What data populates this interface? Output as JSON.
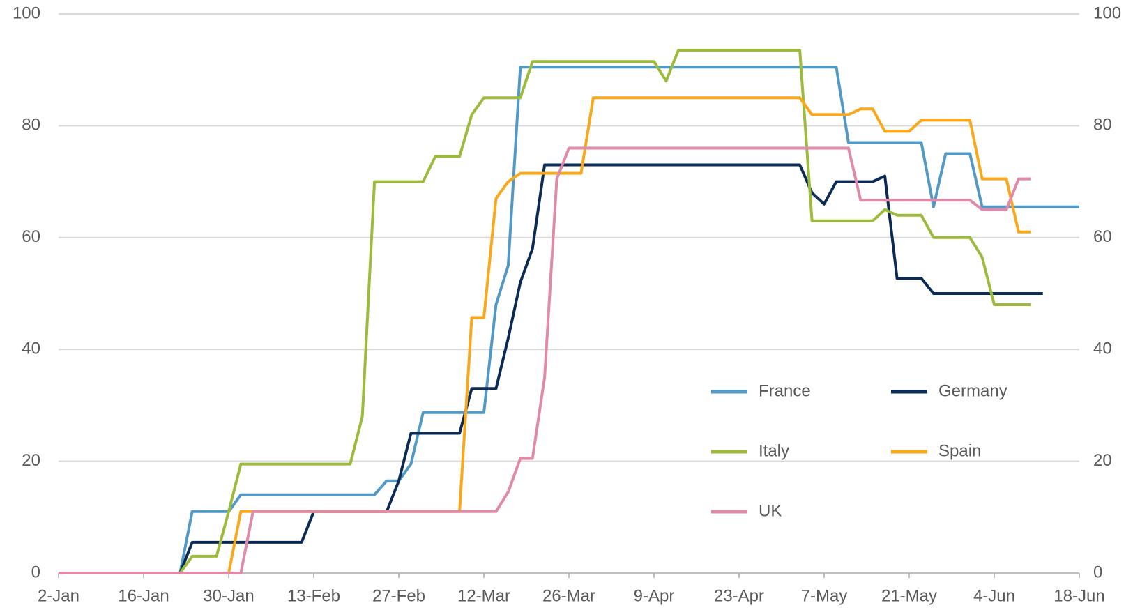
{
  "chart_data": {
    "type": "line",
    "categories": [
      "2-Jan",
      null,
      null,
      null,
      null,
      null,
      null,
      "16-Jan",
      null,
      null,
      null,
      null,
      null,
      null,
      "30-Jan",
      null,
      null,
      null,
      null,
      null,
      null,
      "13-Feb",
      null,
      null,
      null,
      null,
      null,
      null,
      "27-Feb",
      null,
      null,
      null,
      null,
      null,
      null,
      "12-Mar",
      null,
      null,
      null,
      null,
      null,
      null,
      "26-Mar",
      null,
      null,
      null,
      null,
      null,
      null,
      "9-Apr",
      null,
      null,
      null,
      null,
      null,
      null,
      "23-Apr",
      null,
      null,
      null,
      null,
      null,
      null,
      "7-May",
      null,
      null,
      null,
      null,
      null,
      null,
      "21-May",
      null,
      null,
      null,
      null,
      null,
      null,
      "4-Jun",
      null,
      null,
      null,
      null,
      null,
      null,
      "18-Jun"
    ],
    "series": [
      {
        "name": "France",
        "color": "#5299c6",
        "values": [
          0,
          0,
          0,
          0,
          0,
          0,
          0,
          0,
          0,
          0,
          0,
          11,
          11,
          11,
          11,
          14,
          14,
          14,
          14,
          14,
          14,
          14,
          14,
          14,
          14,
          14,
          14,
          16.5,
          16.5,
          19.5,
          28.7,
          28.7,
          28.7,
          28.7,
          28.7,
          28.7,
          48,
          55,
          90.5,
          90.5,
          90.5,
          90.5,
          90.5,
          90.5,
          90.5,
          90.5,
          90.5,
          90.5,
          90.5,
          90.5,
          90.5,
          90.5,
          90.5,
          90.5,
          90.5,
          90.5,
          90.5,
          90.5,
          90.5,
          90.5,
          90.5,
          90.5,
          90.5,
          90.5,
          90.5,
          77,
          77,
          77,
          77,
          77,
          77,
          77,
          65.5,
          75,
          75,
          75,
          65.5,
          65.5,
          65.5,
          65.5,
          65.5,
          65.5,
          65.5,
          65.5,
          65.5
        ]
      },
      {
        "name": "Germany",
        "color": "#0b2b55",
        "values": [
          0,
          0,
          0,
          0,
          0,
          0,
          0,
          0,
          0,
          0,
          0,
          5.5,
          5.5,
          5.5,
          5.5,
          5.5,
          5.5,
          5.5,
          5.5,
          5.5,
          5.5,
          11,
          11,
          11,
          11,
          11,
          11,
          11,
          16.5,
          25,
          25,
          25,
          25,
          25,
          33,
          33,
          33,
          42,
          52,
          58,
          73,
          73,
          73,
          73,
          73,
          73,
          73,
          73,
          73,
          73,
          73,
          73,
          73,
          73,
          73,
          73,
          73,
          73,
          73,
          73,
          73,
          73,
          68,
          66,
          70,
          70,
          70,
          70,
          71,
          52.7,
          52.7,
          52.7,
          50,
          50,
          50,
          50,
          50,
          50,
          50,
          50,
          50,
          50,
          null,
          null,
          null
        ]
      },
      {
        "name": "Italy",
        "color": "#9cbb3c",
        "values": [
          0,
          0,
          0,
          0,
          0,
          0,
          0,
          0,
          0,
          0,
          0,
          3,
          3,
          3,
          11,
          19.5,
          19.5,
          19.5,
          19.5,
          19.5,
          19.5,
          19.5,
          19.5,
          19.5,
          19.5,
          28,
          70,
          70,
          70,
          70,
          70,
          74.5,
          74.5,
          74.5,
          82,
          85,
          85,
          85,
          85,
          91.5,
          91.5,
          91.5,
          91.5,
          91.5,
          91.5,
          91.5,
          91.5,
          91.5,
          91.5,
          91.5,
          88,
          93.5,
          93.5,
          93.5,
          93.5,
          93.5,
          93.5,
          93.5,
          93.5,
          93.5,
          93.5,
          93.5,
          63,
          63,
          63,
          63,
          63,
          63,
          65,
          64,
          64,
          64,
          60,
          60,
          60,
          60,
          56.5,
          48,
          48,
          48,
          48,
          null,
          null,
          null,
          null
        ]
      },
      {
        "name": "Spain",
        "color": "#f9a81c",
        "values": [
          0,
          0,
          0,
          0,
          0,
          0,
          0,
          0,
          0,
          0,
          0,
          0,
          0,
          0,
          0,
          11,
          11,
          11,
          11,
          11,
          11,
          11,
          11,
          11,
          11,
          11,
          11,
          11,
          11,
          11,
          11,
          11,
          11,
          11,
          45.7,
          45.7,
          67,
          70,
          71.5,
          71.5,
          71.5,
          71.5,
          71.5,
          71.5,
          85,
          85,
          85,
          85,
          85,
          85,
          85,
          85,
          85,
          85,
          85,
          85,
          85,
          85,
          85,
          85,
          85,
          85,
          82,
          82,
          82,
          82,
          83,
          83,
          79,
          79,
          79,
          81,
          81,
          81,
          81,
          81,
          70.5,
          70.5,
          70.5,
          61,
          61,
          null,
          null,
          null,
          null
        ]
      },
      {
        "name": "UK",
        "color": "#e08aaa",
        "values": [
          0,
          0,
          0,
          0,
          0,
          0,
          0,
          0,
          0,
          0,
          0,
          0,
          0,
          0,
          0,
          0,
          11,
          11,
          11,
          11,
          11,
          11,
          11,
          11,
          11,
          11,
          11,
          11,
          11,
          11,
          11,
          11,
          11,
          11,
          11,
          11,
          11,
          14.5,
          20.5,
          20.5,
          35,
          70.5,
          76,
          76,
          76,
          76,
          76,
          76,
          76,
          76,
          76,
          76,
          76,
          76,
          76,
          76,
          76,
          76,
          76,
          76,
          76,
          76,
          76,
          76,
          76,
          76,
          66.7,
          66.7,
          66.7,
          66.7,
          66.7,
          66.7,
          66.7,
          66.7,
          66.7,
          66.7,
          65,
          65,
          65,
          70.5,
          70.5,
          null,
          null,
          null,
          null
        ]
      }
    ],
    "ylim": [
      0,
      100
    ],
    "yticks": [
      0,
      20,
      40,
      60,
      80,
      100
    ],
    "y2lim": [
      0,
      100
    ],
    "y2ticks": [
      0,
      20,
      40,
      60,
      80,
      100
    ],
    "grid": true,
    "legend": "lower right"
  }
}
